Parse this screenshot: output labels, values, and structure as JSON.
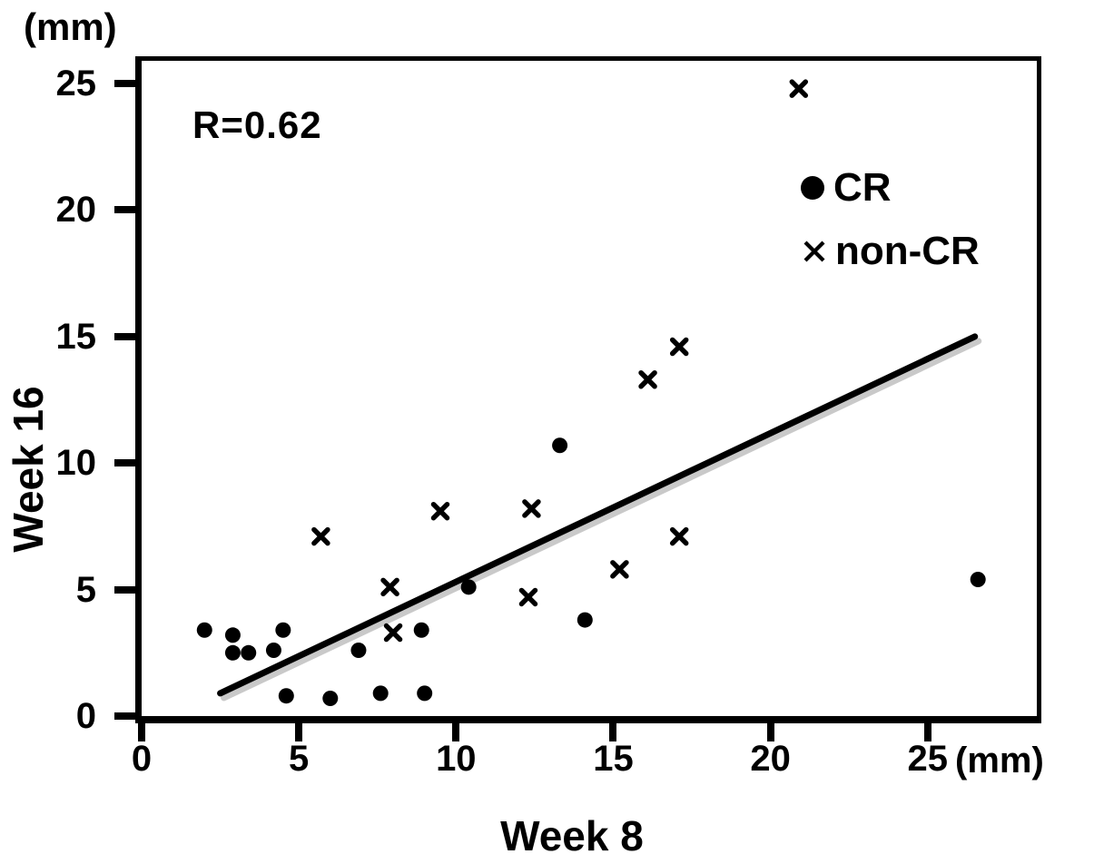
{
  "chart_data": {
    "type": "scatter",
    "title": "",
    "xlabel": "Week 8",
    "ylabel": "Week 16",
    "x_unit": "(mm)",
    "y_unit": "(mm)",
    "annotation": "R=0.62",
    "xlim": [
      0,
      28.5
    ],
    "ylim": [
      0,
      25.9
    ],
    "x_ticks": [
      0,
      5,
      10,
      15,
      20,
      25
    ],
    "y_ticks": [
      0,
      5,
      10,
      15,
      20,
      25
    ],
    "grid": false,
    "legend_position": "upper-right-inside",
    "series": [
      {
        "name": "CR",
        "marker": "circle",
        "points": [
          [
            2.0,
            3.4
          ],
          [
            2.9,
            3.2
          ],
          [
            2.9,
            2.5
          ],
          [
            3.4,
            2.5
          ],
          [
            4.2,
            2.6
          ],
          [
            4.5,
            3.4
          ],
          [
            4.6,
            0.8
          ],
          [
            6.0,
            0.7
          ],
          [
            6.9,
            2.6
          ],
          [
            7.6,
            0.9
          ],
          [
            8.9,
            3.4
          ],
          [
            9.0,
            0.9
          ],
          [
            10.4,
            5.1
          ],
          [
            13.3,
            10.7
          ],
          [
            14.1,
            3.8
          ],
          [
            26.6,
            5.4
          ]
        ]
      },
      {
        "name": "non-CR",
        "marker": "x",
        "points": [
          [
            5.7,
            7.1
          ],
          [
            7.9,
            5.1
          ],
          [
            8.0,
            3.3
          ],
          [
            9.5,
            8.1
          ],
          [
            12.3,
            4.7
          ],
          [
            12.4,
            8.2
          ],
          [
            15.2,
            5.8
          ],
          [
            16.1,
            13.3
          ],
          [
            17.1,
            14.6
          ],
          [
            17.1,
            7.1
          ],
          [
            20.9,
            24.8
          ]
        ]
      }
    ],
    "trend_line": {
      "x1": 2.5,
      "y1": 0.9,
      "x2": 26.5,
      "y2": 15.0
    }
  },
  "colors": {
    "foreground": "#000000",
    "background": "#ffffff",
    "shadow": "#c9c9c9"
  }
}
